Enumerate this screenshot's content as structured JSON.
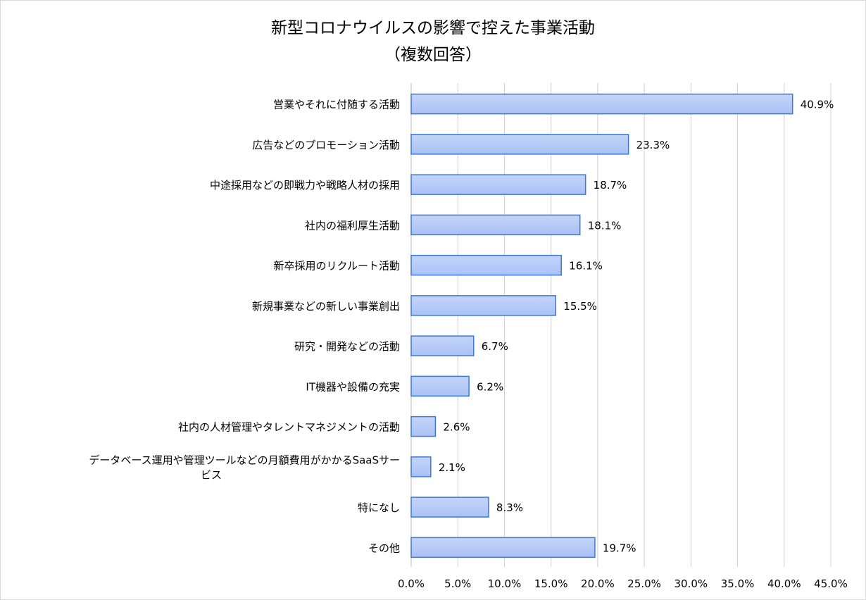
{
  "chart_data": {
    "type": "bar",
    "orientation": "horizontal",
    "title": [
      "新型コロナウイルスの影響で控えた事業活動",
      "（複数回答）"
    ],
    "categories": [
      "営業やそれに付随する活動",
      "広告などのプロモーション活動",
      "中途採用などの即戦力や戦略人材の採用",
      "社内の福利厚生活動",
      "新卒採用のリクルート活動",
      "新規事業などの新しい事業創出",
      "研究・開発などの活動",
      "IT機器や設備の充実",
      "社内の人材管理やタレントマネジメントの活動",
      "データベース運用や管理ツールなどの月額費用がかかるSaaSサービス",
      "特になし",
      "その他"
    ],
    "category_label_lines": [
      [
        "営業やそれに付随する活動"
      ],
      [
        "広告などのプロモーション活動"
      ],
      [
        "中途採用などの即戦力や戦略人材の採用"
      ],
      [
        "社内の福利厚生活動"
      ],
      [
        "新卒採用のリクルート活動"
      ],
      [
        "新規事業などの新しい事業創出"
      ],
      [
        "研究・開発などの活動"
      ],
      [
        "IT機器や設備の充実"
      ],
      [
        "社内の人材管理やタレントマネジメントの活動"
      ],
      [
        "データベース運用や管理ツールなどの月額費用がかかるSaaSサー",
        "ビス"
      ],
      [
        "特になし"
      ],
      [
        "その他"
      ]
    ],
    "values": [
      40.9,
      23.3,
      18.7,
      18.1,
      16.1,
      15.5,
      6.7,
      6.2,
      2.6,
      2.1,
      8.3,
      19.7
    ],
    "value_labels": [
      "40.9%",
      "23.3%",
      "18.7%",
      "18.1%",
      "16.1%",
      "15.5%",
      "6.7%",
      "6.2%",
      "2.6%",
      "2.1%",
      "8.3%",
      "19.7%"
    ],
    "xlim": [
      0,
      45
    ],
    "xticks": [
      0,
      5,
      10,
      15,
      20,
      25,
      30,
      35,
      40,
      45
    ],
    "xtick_labels": [
      "0.0%",
      "5.0%",
      "10.0%",
      "15.0%",
      "20.0%",
      "25.0%",
      "30.0%",
      "35.0%",
      "40.0%",
      "45.0%"
    ],
    "grid": true,
    "colors": {
      "bar_fill": "#a9c1f5",
      "bar_fill_light": "#c5d5f9",
      "bar_stroke": "#3c78d8",
      "grid": "#d0d0d0"
    }
  }
}
